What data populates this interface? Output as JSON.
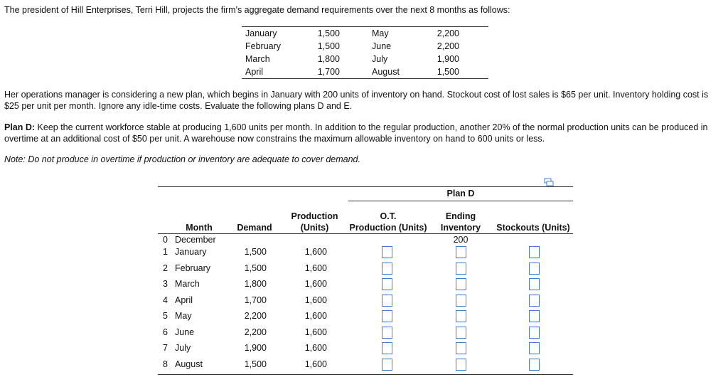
{
  "intro": "The president of Hill Enterprises, Terri Hill, projects the firm's aggregate demand requirements over the next 8 months as follows:",
  "demand_table": {
    "rows": [
      [
        "January",
        "1,500",
        "May",
        "2,200"
      ],
      [
        "February",
        "1,500",
        "June",
        "2,200"
      ],
      [
        "March",
        "1,800",
        "July",
        "1,900"
      ],
      [
        "April",
        "1,700",
        "August",
        "1,500"
      ]
    ]
  },
  "paragraph": "Her operations manager is considering a new plan, which begins in January with 200 units of inventory on hand. Stockout cost of lost sales is $65 per unit. Inventory holding cost is $25 per unit per month. Ignore any idle-time costs. Evaluate the following plans D and E.",
  "plan_d": {
    "label": "Plan D:",
    "text": "Keep the current workforce stable at producing 1,600 units per month. In addition to the regular production, another 20% of the normal production units can be produced in overtime at an additional cost of $50 per unit. A warehouse now constrains the maximum allowable inventory on hand to 600 units or less."
  },
  "note": "Note: Do not produce in overtime if production or inventory are adequate to cover demand.",
  "plan_table": {
    "title": "Plan D",
    "headers": {
      "month": "Month",
      "demand": "Demand",
      "production": [
        "Production",
        "(Units)"
      ],
      "ot": [
        "O.T.",
        "Production (Units)"
      ],
      "ending": [
        "Ending",
        "Inventory"
      ],
      "stockouts": "Stockouts (Units)"
    },
    "initial": {
      "num": "0",
      "month": "December",
      "ending": "200"
    },
    "rows": [
      [
        "1",
        "January",
        "1,500",
        "1,600"
      ],
      [
        "2",
        "February",
        "1,500",
        "1,600"
      ],
      [
        "3",
        "March",
        "1,800",
        "1,600"
      ],
      [
        "4",
        "April",
        "1,700",
        "1,600"
      ],
      [
        "5",
        "May",
        "2,200",
        "1,600"
      ],
      [
        "6",
        "June",
        "2,200",
        "1,600"
      ],
      [
        "7",
        "July",
        "1,900",
        "1,600"
      ],
      [
        "8",
        "August",
        "1,500",
        "1,600"
      ]
    ]
  }
}
